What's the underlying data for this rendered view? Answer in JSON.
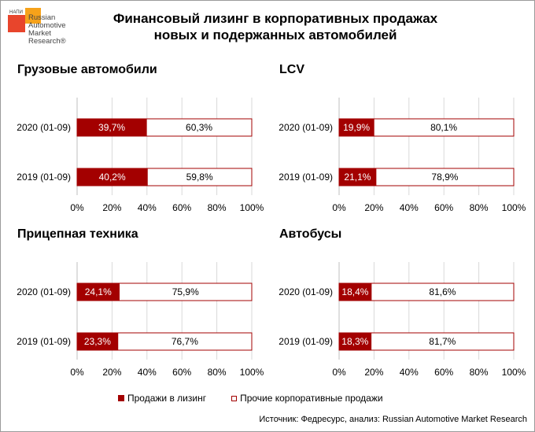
{
  "logo": {
    "abbr": "НАПИ",
    "name": "Russian Automotive Market Research®"
  },
  "title_line1": "Финансовый лизинг в корпоративных продажах",
  "title_line2": "новых и подержанных автомобилей",
  "colors": {
    "leasing": "#a30000",
    "other": "#ffffff",
    "other_border": "#a30000"
  },
  "legend": {
    "leasing": "Продажи в лизинг",
    "other": "Прочие корпоративные продажи"
  },
  "source": "Источник: Федресурс, анализ: Russian Automotive Market Research",
  "chart_data": [
    {
      "type": "bar",
      "stacked": "percent",
      "orientation": "horizontal",
      "title": "Грузовые автомобили",
      "categories": [
        "2020 (01-09)",
        "2019 (01-09)"
      ],
      "series": [
        {
          "name": "Продажи в лизинг",
          "values": [
            39.7,
            40.2
          ],
          "labels": [
            "39,7%",
            "40,2%"
          ]
        },
        {
          "name": "Прочие корпоративные продажи",
          "values": [
            60.3,
            59.8
          ],
          "labels": [
            "60,3%",
            "59,8%"
          ]
        }
      ],
      "xlim": [
        0,
        100
      ],
      "xticks": [
        "0%",
        "20%",
        "40%",
        "60%",
        "80%",
        "100%"
      ]
    },
    {
      "type": "bar",
      "stacked": "percent",
      "orientation": "horizontal",
      "title": "LCV",
      "categories": [
        "2020 (01-09)",
        "2019 (01-09)"
      ],
      "series": [
        {
          "name": "Продажи в лизинг",
          "values": [
            19.9,
            21.1
          ],
          "labels": [
            "19,9%",
            "21,1%"
          ]
        },
        {
          "name": "Прочие корпоративные продажи",
          "values": [
            80.1,
            78.9
          ],
          "labels": [
            "80,1%",
            "78,9%"
          ]
        }
      ],
      "xlim": [
        0,
        100
      ],
      "xticks": [
        "0%",
        "20%",
        "40%",
        "60%",
        "80%",
        "100%"
      ]
    },
    {
      "type": "bar",
      "stacked": "percent",
      "orientation": "horizontal",
      "title": "Прицепная техника",
      "categories": [
        "2020 (01-09)",
        "2019 (01-09)"
      ],
      "series": [
        {
          "name": "Продажи в лизинг",
          "values": [
            24.1,
            23.3
          ],
          "labels": [
            "24,1%",
            "23,3%"
          ]
        },
        {
          "name": "Прочие корпоративные продажи",
          "values": [
            75.9,
            76.7
          ],
          "labels": [
            "75,9%",
            "76,7%"
          ]
        }
      ],
      "xlim": [
        0,
        100
      ],
      "xticks": [
        "0%",
        "20%",
        "40%",
        "60%",
        "80%",
        "100%"
      ]
    },
    {
      "type": "bar",
      "stacked": "percent",
      "orientation": "horizontal",
      "title": "Автобусы",
      "categories": [
        "2020 (01-09)",
        "2019 (01-09)"
      ],
      "series": [
        {
          "name": "Продажи в лизинг",
          "values": [
            18.4,
            18.3
          ],
          "labels": [
            "18,4%",
            "18,3%"
          ]
        },
        {
          "name": "Прочие корпоративные продажи",
          "values": [
            81.6,
            81.7
          ],
          "labels": [
            "81,6%",
            "81,7%"
          ]
        }
      ],
      "xlim": [
        0,
        100
      ],
      "xticks": [
        "0%",
        "20%",
        "40%",
        "60%",
        "80%",
        "100%"
      ]
    }
  ]
}
